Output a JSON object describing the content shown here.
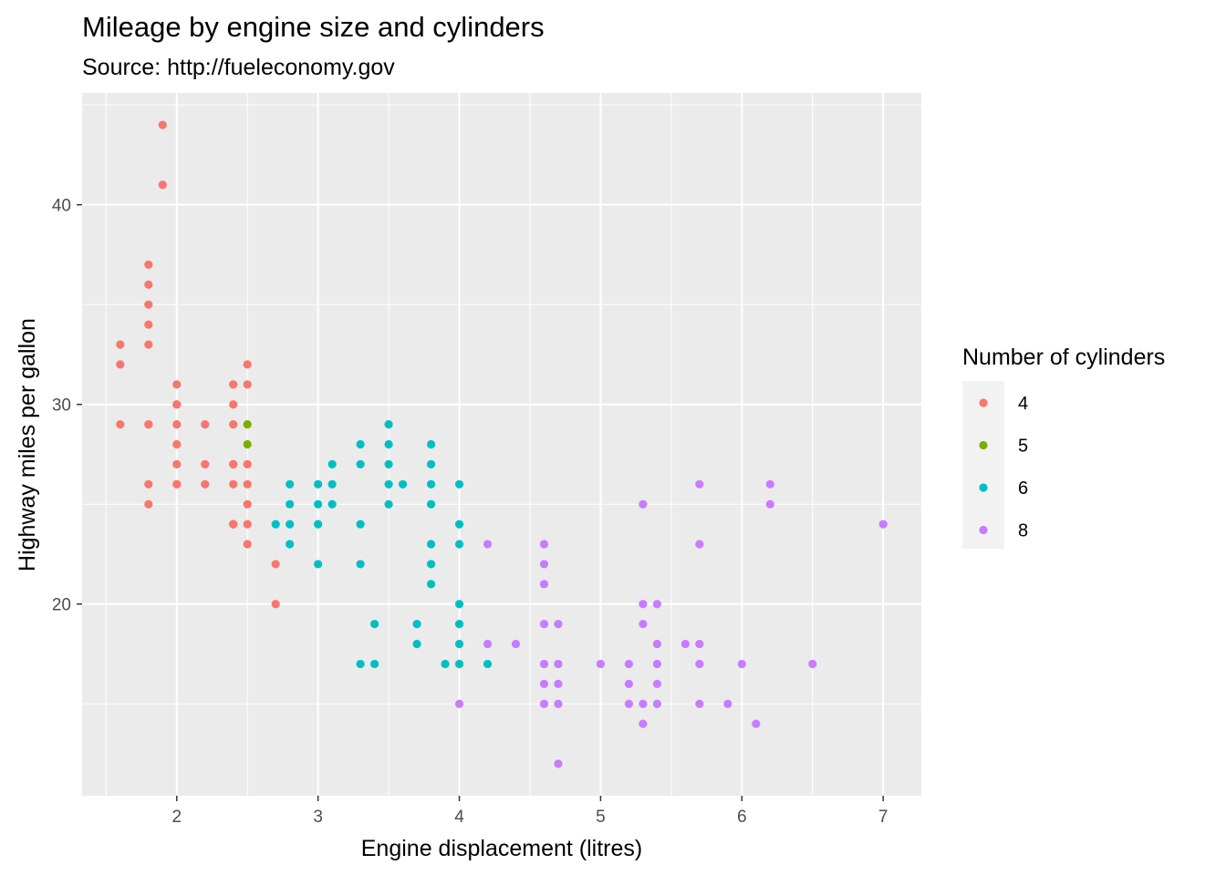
{
  "header": {
    "title": "Mileage by engine size and cylinders",
    "subtitle": "Source: http://fueleconomy.gov"
  },
  "chart_data": {
    "type": "scatter",
    "title": "Mileage by engine size and cylinders",
    "subtitle": "Source: http://fueleconomy.gov",
    "xlabel": "Engine displacement (litres)",
    "ylabel": "Highway miles per gallon",
    "xlim": [
      1.33,
      7.27
    ],
    "ylim": [
      10.4,
      45.6
    ],
    "x_ticks": [
      2,
      3,
      4,
      5,
      6,
      7
    ],
    "y_ticks": [
      20,
      30,
      40
    ],
    "grid": true,
    "background": "#ebebeb",
    "legend": {
      "title": "Number of cylinders",
      "position": "right"
    },
    "series": [
      {
        "name": "4",
        "color": "#f8766d",
        "points": [
          [
            1.8,
            29
          ],
          [
            1.8,
            29
          ],
          [
            2.0,
            31
          ],
          [
            2.0,
            30
          ],
          [
            1.8,
            26
          ],
          [
            1.8,
            25
          ],
          [
            2.0,
            28
          ],
          [
            2.0,
            27
          ],
          [
            2.0,
            26
          ],
          [
            2.4,
            30
          ],
          [
            2.4,
            27
          ],
          [
            2.4,
            24
          ],
          [
            2.4,
            24
          ],
          [
            2.4,
            31
          ],
          [
            2.4,
            26
          ],
          [
            2.2,
            26
          ],
          [
            2.2,
            29
          ],
          [
            2.2,
            27
          ],
          [
            1.6,
            33
          ],
          [
            1.6,
            32
          ],
          [
            1.6,
            29
          ],
          [
            1.8,
            35
          ],
          [
            1.8,
            37
          ],
          [
            1.8,
            36
          ],
          [
            2.0,
            30
          ],
          [
            2.4,
            27
          ],
          [
            2.4,
            24
          ],
          [
            2.5,
            31
          ],
          [
            2.5,
            32
          ],
          [
            2.5,
            26
          ],
          [
            2.5,
            25
          ],
          [
            2.5,
            27
          ],
          [
            2.5,
            23
          ],
          [
            2.7,
            20
          ],
          [
            2.7,
            22
          ],
          [
            1.8,
            34
          ],
          [
            1.8,
            33
          ],
          [
            1.9,
            44
          ],
          [
            1.9,
            41
          ],
          [
            2.0,
            29
          ],
          [
            2.5,
            24
          ],
          [
            2.0,
            26
          ],
          [
            2.4,
            29
          ]
        ]
      },
      {
        "name": "5",
        "color": "#7cae00",
        "points": [
          [
            2.5,
            29
          ],
          [
            2.5,
            28
          ]
        ]
      },
      {
        "name": "6",
        "color": "#00bfc4",
        "points": [
          [
            2.8,
            26
          ],
          [
            2.8,
            25
          ],
          [
            3.1,
            27
          ],
          [
            3.1,
            26
          ],
          [
            3.1,
            25
          ],
          [
            2.8,
            23
          ],
          [
            2.7,
            24
          ],
          [
            3.0,
            26
          ],
          [
            3.0,
            25
          ],
          [
            3.0,
            24
          ],
          [
            3.0,
            22
          ],
          [
            3.3,
            24
          ],
          [
            3.3,
            22
          ],
          [
            3.3,
            17
          ],
          [
            3.3,
            28
          ],
          [
            3.3,
            27
          ],
          [
            3.4,
            19
          ],
          [
            3.4,
            17
          ],
          [
            3.5,
            29
          ],
          [
            3.5,
            28
          ],
          [
            3.5,
            27
          ],
          [
            3.5,
            26
          ],
          [
            3.5,
            25
          ],
          [
            3.6,
            26
          ],
          [
            3.7,
            19
          ],
          [
            3.7,
            18
          ],
          [
            3.8,
            28
          ],
          [
            3.8,
            27
          ],
          [
            3.8,
            26
          ],
          [
            3.8,
            25
          ],
          [
            3.8,
            23
          ],
          [
            3.8,
            22
          ],
          [
            3.8,
            21
          ],
          [
            3.9,
            17
          ],
          [
            4.0,
            26
          ],
          [
            4.0,
            24
          ],
          [
            4.0,
            23
          ],
          [
            4.0,
            20
          ],
          [
            4.0,
            19
          ],
          [
            4.0,
            18
          ],
          [
            4.0,
            17
          ],
          [
            4.2,
            17
          ],
          [
            2.8,
            24
          ]
        ]
      },
      {
        "name": "8",
        "color": "#c77cff",
        "points": [
          [
            4.2,
            23
          ],
          [
            4.2,
            18
          ],
          [
            4.4,
            18
          ],
          [
            4.6,
            23
          ],
          [
            4.6,
            22
          ],
          [
            4.6,
            21
          ],
          [
            4.6,
            19
          ],
          [
            4.6,
            17
          ],
          [
            4.6,
            16
          ],
          [
            4.6,
            15
          ],
          [
            4.7,
            19
          ],
          [
            4.7,
            17
          ],
          [
            4.7,
            16
          ],
          [
            4.7,
            15
          ],
          [
            4.7,
            12
          ],
          [
            5.0,
            17
          ],
          [
            5.2,
            17
          ],
          [
            5.2,
            16
          ],
          [
            5.2,
            15
          ],
          [
            5.3,
            25
          ],
          [
            5.3,
            20
          ],
          [
            5.3,
            19
          ],
          [
            5.3,
            15
          ],
          [
            5.3,
            14
          ],
          [
            5.4,
            20
          ],
          [
            5.4,
            18
          ],
          [
            5.4,
            17
          ],
          [
            5.4,
            16
          ],
          [
            5.4,
            15
          ],
          [
            5.6,
            18
          ],
          [
            5.7,
            26
          ],
          [
            5.7,
            23
          ],
          [
            5.7,
            18
          ],
          [
            5.7,
            17
          ],
          [
            5.7,
            15
          ],
          [
            5.9,
            15
          ],
          [
            6.0,
            17
          ],
          [
            6.1,
            14
          ],
          [
            6.2,
            26
          ],
          [
            6.2,
            25
          ],
          [
            6.5,
            17
          ],
          [
            7.0,
            24
          ],
          [
            4.0,
            15
          ]
        ]
      }
    ]
  }
}
